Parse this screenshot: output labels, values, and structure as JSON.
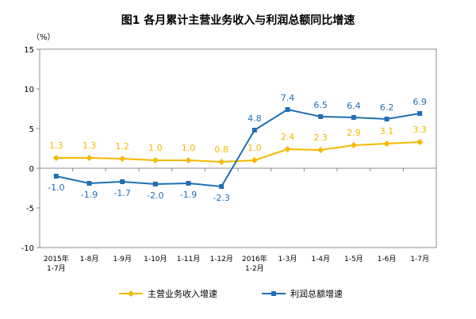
{
  "chart_data": {
    "type": "line",
    "title": "图1  各月累计主营业务收入与利润总额同比增速",
    "unit_label": "（%）",
    "categories": [
      [
        "2015年",
        "1-7月"
      ],
      [
        "1-8月"
      ],
      [
        "1-9月"
      ],
      [
        "1-10月"
      ],
      [
        "1-11月"
      ],
      [
        "1-12月"
      ],
      [
        "2016年",
        "1-2月"
      ],
      [
        "1-3月"
      ],
      [
        "1-4月"
      ],
      [
        "1-5月"
      ],
      [
        "1-6月"
      ],
      [
        "1-7月"
      ]
    ],
    "series": [
      {
        "name": "主营业务收入增速",
        "color": "#f5b800",
        "marker": "diamond",
        "values": [
          1.3,
          1.3,
          1.2,
          1.0,
          1.0,
          0.8,
          1.0,
          2.4,
          2.3,
          2.9,
          3.1,
          3.3
        ],
        "labels": [
          "1.3",
          "1.3",
          "1.2",
          "1.0",
          "1.0",
          "0.8",
          "1.0",
          "2.4",
          "2.3",
          "2.9",
          "3.1",
          "3.3"
        ]
      },
      {
        "name": "利润总额增速",
        "color": "#1f6fb5",
        "marker": "square",
        "values": [
          -1.0,
          -1.9,
          -1.7,
          -2.0,
          -1.9,
          -2.3,
          4.8,
          7.4,
          6.5,
          6.4,
          6.2,
          6.9
        ],
        "labels": [
          "-1.0",
          "-1.9",
          "-1.7",
          "-2.0",
          "-1.9",
          "-2.3",
          "4.8",
          "7.4",
          "6.5",
          "6.4",
          "6.2",
          "6.9"
        ]
      }
    ],
    "ylim": [
      -10,
      15
    ],
    "yticks": [
      "-10",
      "-5",
      "0",
      "5",
      "10",
      "15"
    ],
    "ytick_values": [
      -10,
      -5,
      0,
      5,
      10,
      15
    ],
    "grid": false,
    "legend_position": "bottom"
  }
}
